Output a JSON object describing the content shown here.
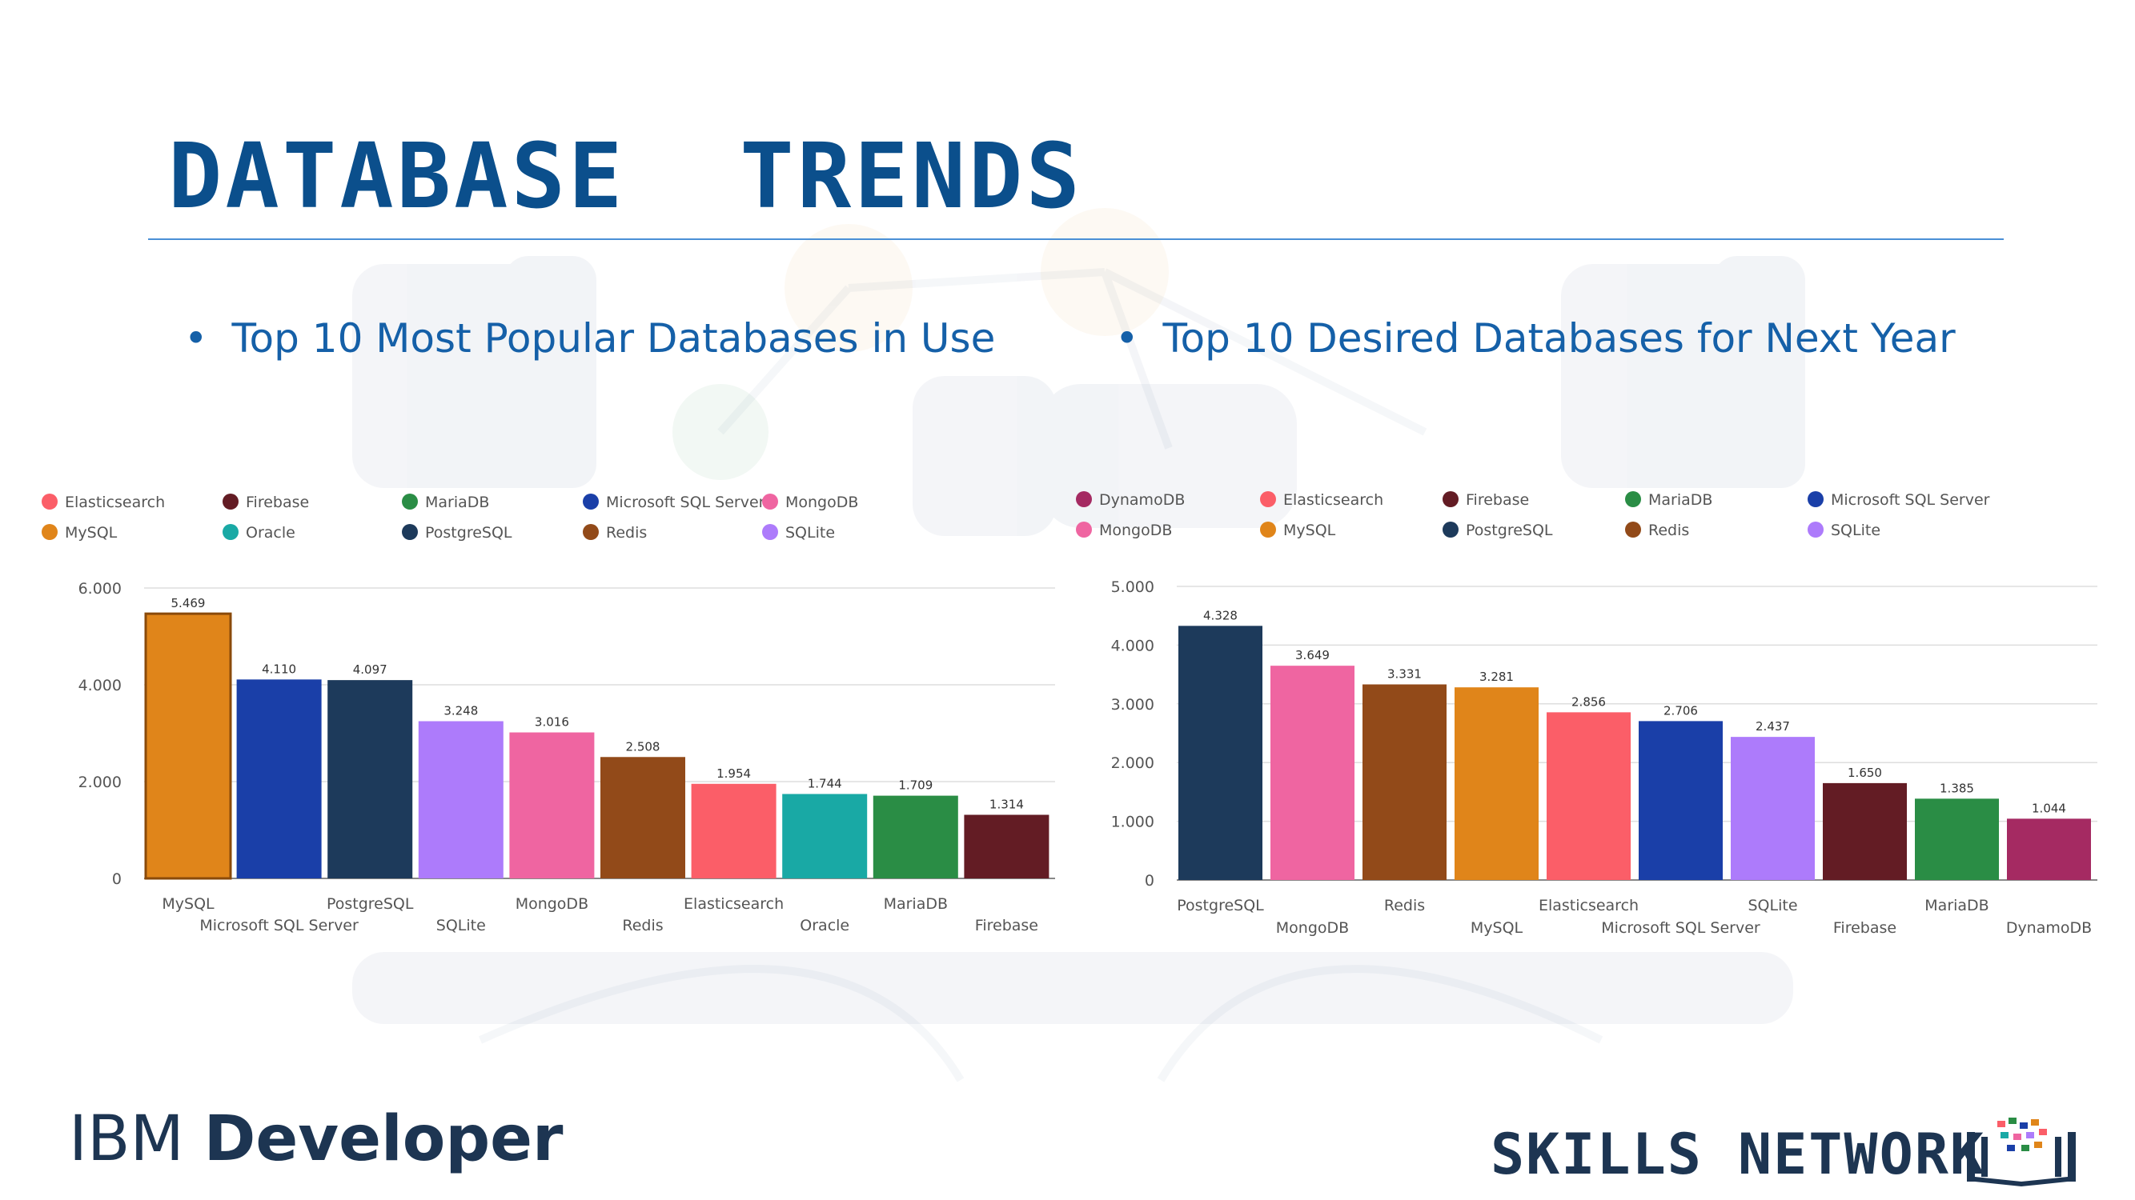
{
  "slide": {
    "title": "DATABASE  TRENDS",
    "bullets": [
      {
        "marker": "•",
        "text": "Top 10 Most Popular Databases in Use"
      },
      {
        "marker": "•",
        "text": "Top 10 Desired Databases for Next Year"
      }
    ],
    "footer": {
      "brand_light": "IBM ",
      "brand_bold": "Developer",
      "skills": "SKILLS NETWORK",
      "logo_icon": "skills-network-book-icon"
    },
    "colors": {
      "title": "#0b4f8c",
      "bullet": "#1560a8",
      "rule": "#4a8fd6",
      "footer": "#1d3552"
    }
  },
  "chart_data": [
    {
      "type": "bar",
      "legend_position": "top",
      "legend": [
        {
          "name": "Elasticsearch",
          "color": "#fb5e68"
        },
        {
          "name": "Firebase",
          "color": "#631c24"
        },
        {
          "name": "MariaDB",
          "color": "#2a8d45"
        },
        {
          "name": "Microsoft SQL Server",
          "color": "#1a3fa8"
        },
        {
          "name": "MongoDB",
          "color": "#ef65a1"
        },
        {
          "name": "MySQL",
          "color": "#e0851a"
        },
        {
          "name": "Oracle",
          "color": "#19a9a5"
        },
        {
          "name": "PostgreSQL",
          "color": "#1d3a5b"
        },
        {
          "name": "Redis",
          "color": "#924a19"
        },
        {
          "name": "SQLite",
          "color": "#ad7bfb"
        }
      ],
      "categories": [
        "MySQL",
        "Microsoft SQL Server",
        "PostgreSQL",
        "SQLite",
        "MongoDB",
        "Redis",
        "Elasticsearch",
        "Oracle",
        "MariaDB",
        "Firebase"
      ],
      "values": [
        5469,
        4110,
        4097,
        3248,
        3016,
        2508,
        1954,
        1744,
        1709,
        1314
      ],
      "value_labels": [
        "5.469",
        "4.110",
        "4.097",
        "3.248",
        "3.016",
        "2.508",
        "1.954",
        "1.744",
        "1.709",
        "1.314"
      ],
      "y_ticks": [
        0,
        2000,
        4000,
        6000
      ],
      "y_tick_labels": [
        "0",
        "2.000",
        "4.000",
        "6.000"
      ],
      "ylim": [
        0,
        6000
      ],
      "grid": true
    },
    {
      "type": "bar",
      "legend_position": "top",
      "legend": [
        {
          "name": "DynamoDB",
          "color": "#a52a62"
        },
        {
          "name": "Elasticsearch",
          "color": "#fb5e68"
        },
        {
          "name": "Firebase",
          "color": "#631c24"
        },
        {
          "name": "MariaDB",
          "color": "#2a8d45"
        },
        {
          "name": "Microsoft SQL Server",
          "color": "#1a3fa8"
        },
        {
          "name": "MongoDB",
          "color": "#ef65a1"
        },
        {
          "name": "MySQL",
          "color": "#e0851a"
        },
        {
          "name": "PostgreSQL",
          "color": "#1d3a5b"
        },
        {
          "name": "Redis",
          "color": "#924a19"
        },
        {
          "name": "SQLite",
          "color": "#ad7bfb"
        }
      ],
      "categories": [
        "PostgreSQL",
        "MongoDB",
        "Redis",
        "MySQL",
        "Elasticsearch",
        "Microsoft SQL Server",
        "SQLite",
        "Firebase",
        "MariaDB",
        "DynamoDB"
      ],
      "values": [
        4328,
        3649,
        3331,
        3281,
        2856,
        2706,
        2437,
        1650,
        1385,
        1044
      ],
      "value_labels": [
        "4.328",
        "3.649",
        "3.331",
        "3.281",
        "2.856",
        "2.706",
        "2.437",
        "1.650",
        "1.385",
        "1.044"
      ],
      "y_ticks": [
        0,
        1000,
        2000,
        3000,
        4000,
        5000
      ],
      "y_tick_labels": [
        "0",
        "1.000",
        "2.000",
        "3.000",
        "4.000",
        "5.000"
      ],
      "ylim": [
        0,
        5000
      ],
      "grid": true
    }
  ]
}
